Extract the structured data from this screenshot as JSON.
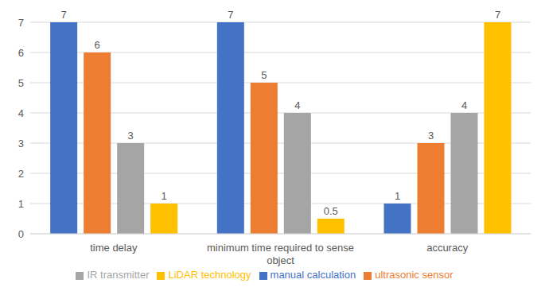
{
  "chart_data": {
    "type": "bar",
    "categories": [
      "time delay",
      "minimum time required to sense object",
      "accuracy"
    ],
    "series": [
      {
        "name": "manual calculation",
        "color": "#4472c4",
        "values": [
          7,
          7,
          1
        ]
      },
      {
        "name": "ultrasonic sensor",
        "color": "#ed7d31",
        "values": [
          6,
          5,
          3
        ]
      },
      {
        "name": "IR transmitter",
        "color": "#a5a5a5",
        "values": [
          3,
          4,
          4
        ]
      },
      {
        "name": "LiDAR technology",
        "color": "#ffc000",
        "values": [
          1,
          0.5,
          7
        ]
      }
    ],
    "ylim": [
      0,
      7
    ],
    "yticks": [
      0,
      1,
      2,
      3,
      4,
      5,
      6,
      7
    ],
    "grid": true,
    "data_labels": true,
    "legend": "bottom"
  }
}
